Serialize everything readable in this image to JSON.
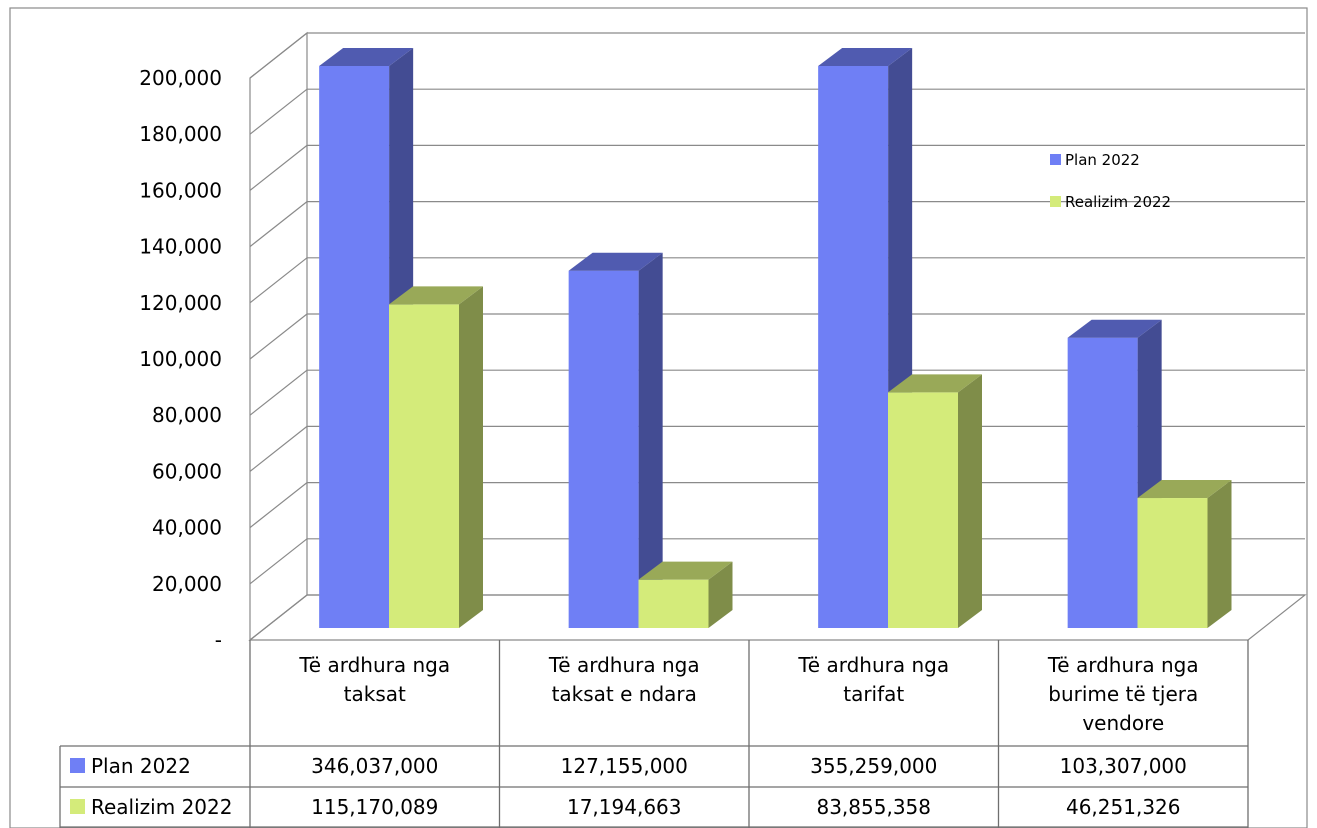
{
  "chart_data": {
    "type": "bar",
    "style": "3d-clustered-column-with-data-table",
    "categories": [
      [
        "Të ardhura nga",
        "taksat"
      ],
      [
        "Të ardhura nga",
        "taksat e ndara"
      ],
      [
        "Të ardhura nga",
        "tarifat"
      ],
      [
        "Të ardhura nga",
        "burime të tjera",
        "vendore"
      ]
    ],
    "series": [
      {
        "name": "Plan 2022",
        "color": "#6f7ff5",
        "values": [
          346037000,
          127155000,
          355259000,
          103307000
        ],
        "table_values": [
          "346,037,000",
          "127,155,000",
          "355,259,000",
          "103,307,000"
        ]
      },
      {
        "name": "Realizim 2022",
        "color": "#d4eb7a",
        "values": [
          115170089,
          17194663,
          83855358,
          46251326
        ],
        "table_values": [
          "115,170,089",
          "17,194,663",
          "83,855,358",
          "46,251,326"
        ]
      }
    ],
    "y_tick_labels": [
      "-",
      "20,000",
      "40,000",
      "60,000",
      "80,000",
      "100,000",
      "120,000",
      "140,000",
      "160,000",
      "180,000",
      "200,000"
    ],
    "ylim": [
      0,
      200000
    ],
    "value_scale_note_hidden": 1000,
    "grid": true,
    "legend_position": "right"
  }
}
